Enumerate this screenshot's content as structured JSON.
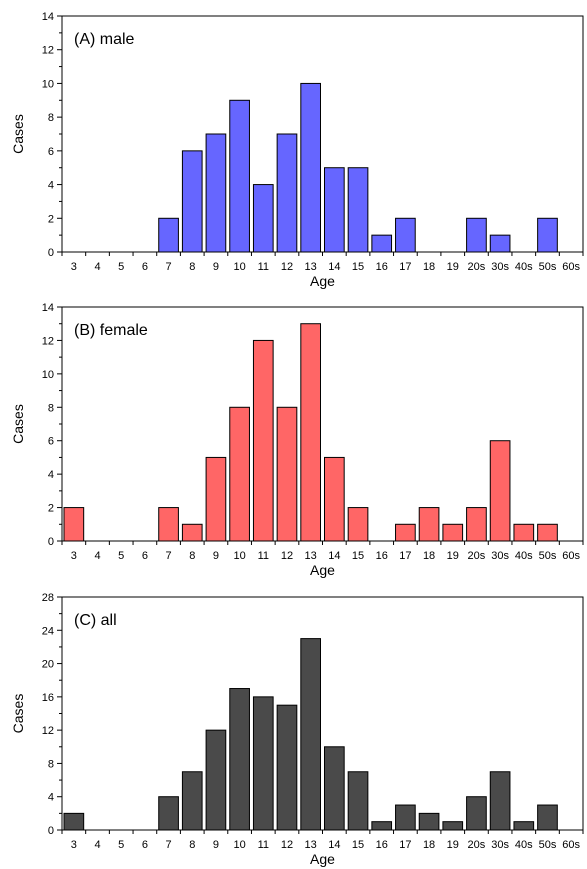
{
  "chart_data": [
    {
      "type": "bar",
      "label": "(A) male",
      "xlabel": "Age",
      "ylabel": "Cases",
      "ylim": [
        0,
        14
      ],
      "yticks": [
        0,
        2,
        4,
        6,
        8,
        10,
        12,
        14
      ],
      "categories": [
        "3",
        "4",
        "5",
        "6",
        "7",
        "8",
        "9",
        "10",
        "11",
        "12",
        "13",
        "14",
        "15",
        "16",
        "17",
        "18",
        "19",
        "20s",
        "30s",
        "40s",
        "50s",
        "60s"
      ],
      "values": [
        0,
        0,
        0,
        0,
        2,
        6,
        7,
        9,
        4,
        7,
        10,
        5,
        5,
        1,
        2,
        0,
        0,
        2,
        1,
        0,
        2,
        0
      ],
      "color": "#6666ff"
    },
    {
      "type": "bar",
      "label": "(B) female",
      "xlabel": "Age",
      "ylabel": "Cases",
      "ylim": [
        0,
        14
      ],
      "yticks": [
        0,
        2,
        4,
        6,
        8,
        10,
        12,
        14
      ],
      "categories": [
        "3",
        "4",
        "5",
        "6",
        "7",
        "8",
        "9",
        "10",
        "11",
        "12",
        "13",
        "14",
        "15",
        "16",
        "17",
        "18",
        "19",
        "20s",
        "30s",
        "40s",
        "50s",
        "60s"
      ],
      "values": [
        2,
        0,
        0,
        0,
        2,
        1,
        5,
        8,
        12,
        8,
        13,
        5,
        2,
        0,
        1,
        2,
        1,
        2,
        6,
        1,
        1,
        0
      ],
      "color": "#ff6666"
    },
    {
      "type": "bar",
      "label": "(C) all",
      "xlabel": "Age",
      "ylabel": "Cases",
      "ylim": [
        0,
        28
      ],
      "yticks": [
        0,
        4,
        8,
        12,
        16,
        20,
        24,
        28
      ],
      "categories": [
        "3",
        "4",
        "5",
        "6",
        "7",
        "8",
        "9",
        "10",
        "11",
        "12",
        "13",
        "14",
        "15",
        "16",
        "17",
        "18",
        "19",
        "20s",
        "30s",
        "40s",
        "50s",
        "60s"
      ],
      "values": [
        2,
        0,
        0,
        0,
        4,
        7,
        12,
        17,
        16,
        15,
        23,
        10,
        7,
        1,
        3,
        2,
        1,
        4,
        7,
        1,
        3,
        0
      ],
      "color": "#4a4a4a"
    }
  ]
}
